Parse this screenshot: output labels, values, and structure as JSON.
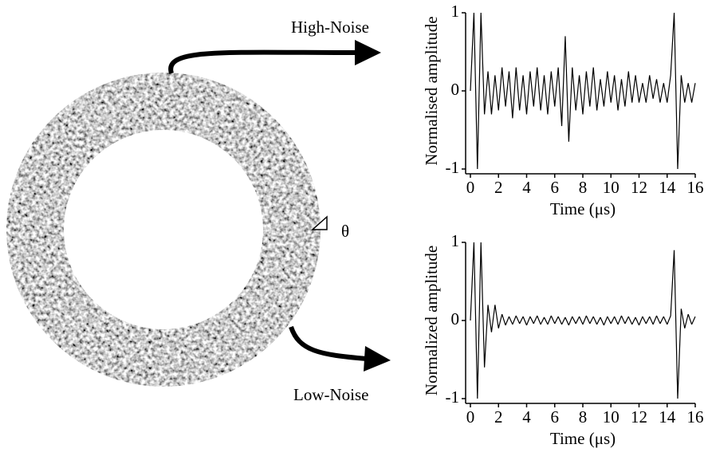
{
  "annotations": {
    "high_noise": "High-Noise",
    "low_noise": "Low-Noise",
    "theta": "θ"
  },
  "chart_data": [
    {
      "type": "line",
      "ylabel": "Normalised amplitude",
      "xlabel": "Time (μs)",
      "x": [
        0,
        0.25,
        0.5,
        0.75,
        1,
        1.25,
        1.5,
        1.75,
        2,
        2.25,
        2.5,
        2.75,
        3,
        3.25,
        3.5,
        3.75,
        4,
        4.25,
        4.5,
        4.75,
        5,
        5.25,
        5.5,
        5.75,
        6,
        6.25,
        6.5,
        6.75,
        7,
        7.25,
        7.5,
        7.75,
        8,
        8.25,
        8.5,
        8.75,
        9,
        9.25,
        9.5,
        9.75,
        10,
        10.25,
        10.5,
        10.75,
        11,
        11.25,
        11.5,
        11.75,
        12,
        12.25,
        12.5,
        12.75,
        13,
        13.25,
        13.5,
        13.75,
        14,
        14.25,
        14.5,
        14.75,
        15,
        15.25,
        15.5,
        15.75,
        16
      ],
      "values": [
        0,
        1,
        -1,
        1,
        -0.3,
        0.25,
        -0.3,
        0.2,
        -0.25,
        0.3,
        -0.2,
        0.25,
        -0.35,
        0.3,
        -0.25,
        0.2,
        -0.3,
        0.25,
        -0.2,
        0.3,
        -0.25,
        0.2,
        -0.3,
        0.25,
        -0.2,
        0.3,
        -0.45,
        0.7,
        -0.65,
        0.3,
        -0.25,
        0.2,
        -0.3,
        0.25,
        -0.2,
        0.3,
        -0.25,
        0.15,
        -0.2,
        0.25,
        -0.15,
        0.2,
        -0.25,
        0.15,
        -0.2,
        0.25,
        -0.15,
        0.2,
        -0.15,
        0.1,
        -0.15,
        0.2,
        -0.1,
        0.15,
        -0.15,
        0.1,
        -0.15,
        0.2,
        1,
        -1,
        0.2,
        -0.15,
        0.1,
        -0.15,
        0.1
      ],
      "color": "#000000",
      "xlim": [
        0,
        16
      ],
      "ylim": [
        -1,
        1
      ],
      "xticks": [
        0,
        2,
        4,
        6,
        8,
        10,
        12,
        14,
        16
      ],
      "yticks": [
        -1,
        0,
        1
      ]
    },
    {
      "type": "line",
      "ylabel": "Normalized amplitude",
      "xlabel": "Time (μs)",
      "x": [
        0,
        0.25,
        0.5,
        0.75,
        1,
        1.25,
        1.5,
        1.75,
        2,
        2.25,
        2.5,
        2.75,
        3,
        3.25,
        3.5,
        3.75,
        4,
        4.25,
        4.5,
        4.75,
        5,
        5.25,
        5.5,
        5.75,
        6,
        6.25,
        6.5,
        6.75,
        7,
        7.25,
        7.5,
        7.75,
        8,
        8.25,
        8.5,
        8.75,
        9,
        9.25,
        9.5,
        9.75,
        10,
        10.25,
        10.5,
        10.75,
        11,
        11.25,
        11.5,
        11.75,
        12,
        12.25,
        12.5,
        12.75,
        13,
        13.25,
        13.5,
        13.75,
        14,
        14.25,
        14.5,
        14.75,
        15,
        15.25,
        15.5,
        15.75,
        16
      ],
      "values": [
        0,
        1,
        -1,
        1,
        -0.6,
        0.2,
        -0.15,
        0.2,
        -0.1,
        0.08,
        -0.06,
        0.05,
        -0.05,
        0.06,
        -0.04,
        0.05,
        -0.06,
        0.05,
        -0.04,
        0.06,
        -0.05,
        0.04,
        -0.05,
        0.06,
        -0.04,
        0.05,
        -0.05,
        0.04,
        -0.06,
        0.05,
        -0.04,
        0.05,
        -0.05,
        0.06,
        -0.04,
        0.05,
        -0.05,
        0.04,
        -0.06,
        0.05,
        -0.04,
        0.05,
        -0.05,
        0.06,
        -0.04,
        0.05,
        -0.05,
        0.04,
        -0.06,
        0.05,
        -0.04,
        0.05,
        -0.05,
        0.06,
        -0.04,
        0.05,
        -0.05,
        0.06,
        0.9,
        -1,
        0.15,
        -0.1,
        0.08,
        -0.05,
        0.05
      ],
      "color": "#000000",
      "xlim": [
        0,
        16
      ],
      "ylim": [
        -1,
        1
      ],
      "xticks": [
        0,
        2,
        4,
        6,
        8,
        10,
        12,
        14,
        16
      ],
      "yticks": [
        -1,
        0,
        1
      ]
    }
  ]
}
